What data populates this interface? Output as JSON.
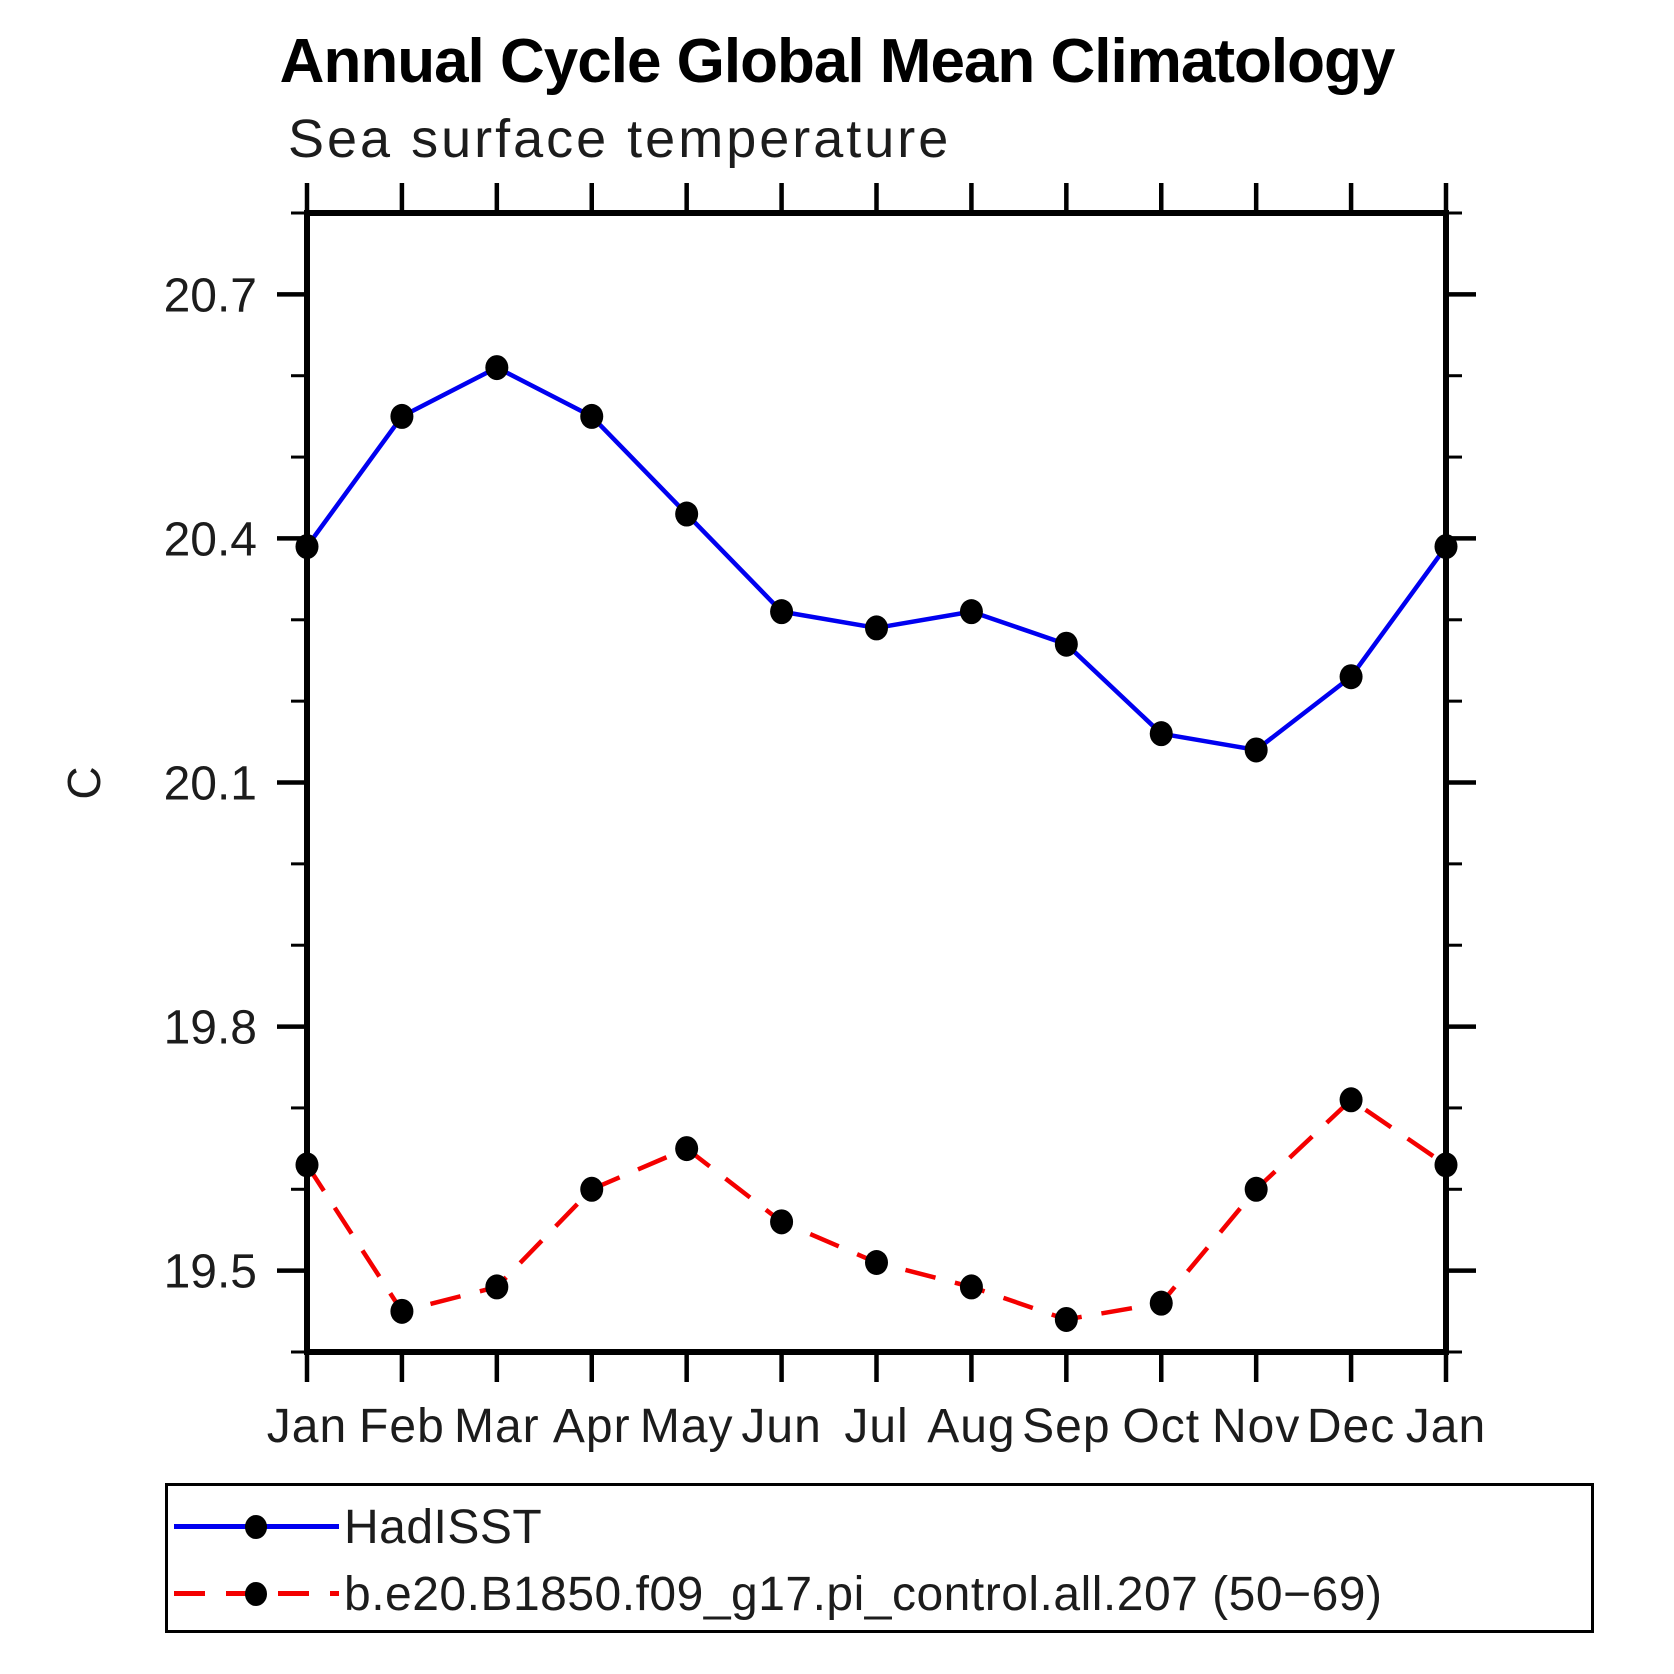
{
  "title": "Annual Cycle Global Mean Climatology",
  "subtitle": "Sea surface temperature",
  "chart_data": {
    "type": "line",
    "categories": [
      "Jan",
      "Feb",
      "Mar",
      "Apr",
      "May",
      "Jun",
      "Jul",
      "Aug",
      "Sep",
      "Oct",
      "Nov",
      "Dec",
      "Jan"
    ],
    "ylabel": "C",
    "ylim": [
      19.4,
      20.8
    ],
    "yticks_major": [
      20.7,
      20.4,
      20.1,
      19.8,
      19.5
    ],
    "ytick_minor_step": 0.1,
    "grid": false,
    "legend_position": "bottom-left-box",
    "series": [
      {
        "name": "HadISST",
        "color": "#0000f0",
        "style": "solid",
        "marker": "circle",
        "marker_color": "#000000",
        "values": [
          20.39,
          20.55,
          20.61,
          20.55,
          20.43,
          20.31,
          20.29,
          20.31,
          20.27,
          20.16,
          20.14,
          20.23,
          20.39
        ]
      },
      {
        "name": "b.e20.B1850.f09_g17.pi_control.all.207 (50−69)",
        "color": "#f40000",
        "style": "dashed",
        "marker": "circle",
        "marker_color": "#000000",
        "values": [
          19.63,
          19.45,
          19.48,
          19.6,
          19.65,
          19.56,
          19.51,
          19.48,
          19.44,
          19.46,
          19.6,
          19.71,
          19.63
        ]
      }
    ]
  }
}
